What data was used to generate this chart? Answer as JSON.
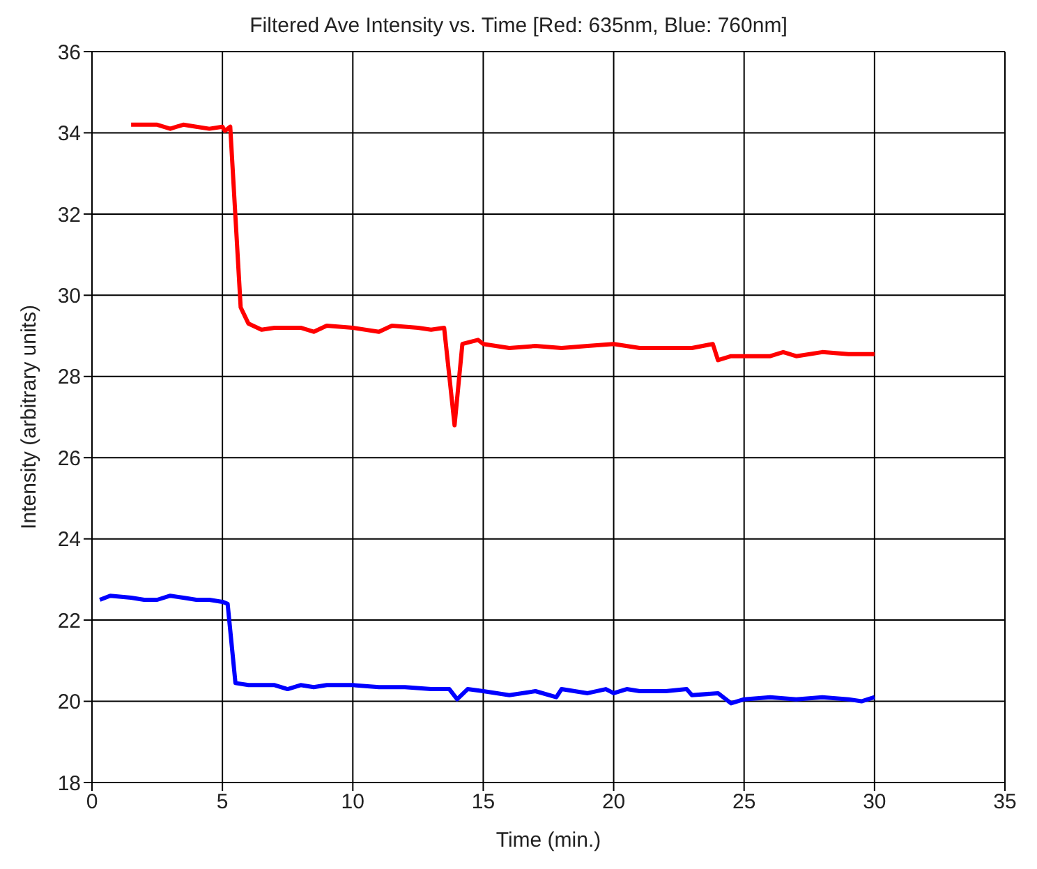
{
  "chart_data": {
    "type": "line",
    "title": "Filtered Ave Intensity vs. Time [Red: 635nm, Blue: 760nm]",
    "xlabel": "Time (min.)",
    "ylabel": "Intensity (arbitrary units)",
    "xlim": [
      0,
      35
    ],
    "xticks": [
      0,
      5,
      10,
      15,
      20,
      25,
      30,
      35
    ],
    "ylim": [
      18,
      36
    ],
    "yticks": [
      18,
      20,
      22,
      24,
      26,
      28,
      30,
      32,
      34,
      36
    ],
    "grid": true,
    "marker": "none",
    "line_style": "solid",
    "series": [
      {
        "color": "#ff0000",
        "x": [
          1.5,
          2,
          2.5,
          3,
          3.5,
          4,
          4.5,
          5,
          5.1,
          5.3,
          5.7,
          6,
          6.5,
          7,
          8,
          8.5,
          9,
          10,
          11,
          11.5,
          12.5,
          13,
          13.5,
          13.9,
          14.2,
          14.8,
          15,
          16,
          17,
          18,
          19,
          20,
          21,
          22,
          23,
          23.8,
          24,
          24.5,
          25,
          26,
          26.5,
          27,
          28,
          29,
          30
        ],
        "values": [
          34.2,
          34.2,
          34.2,
          34.1,
          34.2,
          34.15,
          34.1,
          34.15,
          34.05,
          34.15,
          29.7,
          29.3,
          29.15,
          29.2,
          29.2,
          29.1,
          29.25,
          29.2,
          29.1,
          29.25,
          29.2,
          29.15,
          29.2,
          26.8,
          28.8,
          28.9,
          28.8,
          28.7,
          28.75,
          28.7,
          28.75,
          28.8,
          28.7,
          28.7,
          28.7,
          28.8,
          28.4,
          28.5,
          28.5,
          28.5,
          28.6,
          28.5,
          28.6,
          28.55,
          28.55
        ]
      },
      {
        "color": "#0000ff",
        "x": [
          0.3,
          0.7,
          1.5,
          2,
          2.5,
          3,
          3.5,
          4,
          4.5,
          5,
          5.2,
          5.5,
          6,
          7,
          7.5,
          8,
          8.5,
          9,
          10,
          11,
          12,
          13,
          13.7,
          14,
          14.4,
          15,
          16,
          17,
          17.8,
          18,
          19,
          19.7,
          20,
          20.5,
          21,
          22,
          22.8,
          23,
          24,
          24.5,
          25,
          26,
          27,
          28,
          29,
          29.5,
          30
        ],
        "values": [
          22.5,
          22.6,
          22.55,
          22.5,
          22.5,
          22.6,
          22.55,
          22.5,
          22.5,
          22.45,
          22.4,
          20.45,
          20.4,
          20.4,
          20.3,
          20.4,
          20.35,
          20.4,
          20.4,
          20.35,
          20.35,
          20.3,
          20.3,
          20.05,
          20.3,
          20.25,
          20.15,
          20.25,
          20.1,
          20.3,
          20.2,
          20.3,
          20.2,
          20.3,
          20.25,
          20.25,
          20.3,
          20.15,
          20.2,
          19.95,
          20.05,
          20.1,
          20.05,
          20.1,
          20.05,
          20.0,
          20.1
        ]
      }
    ]
  }
}
